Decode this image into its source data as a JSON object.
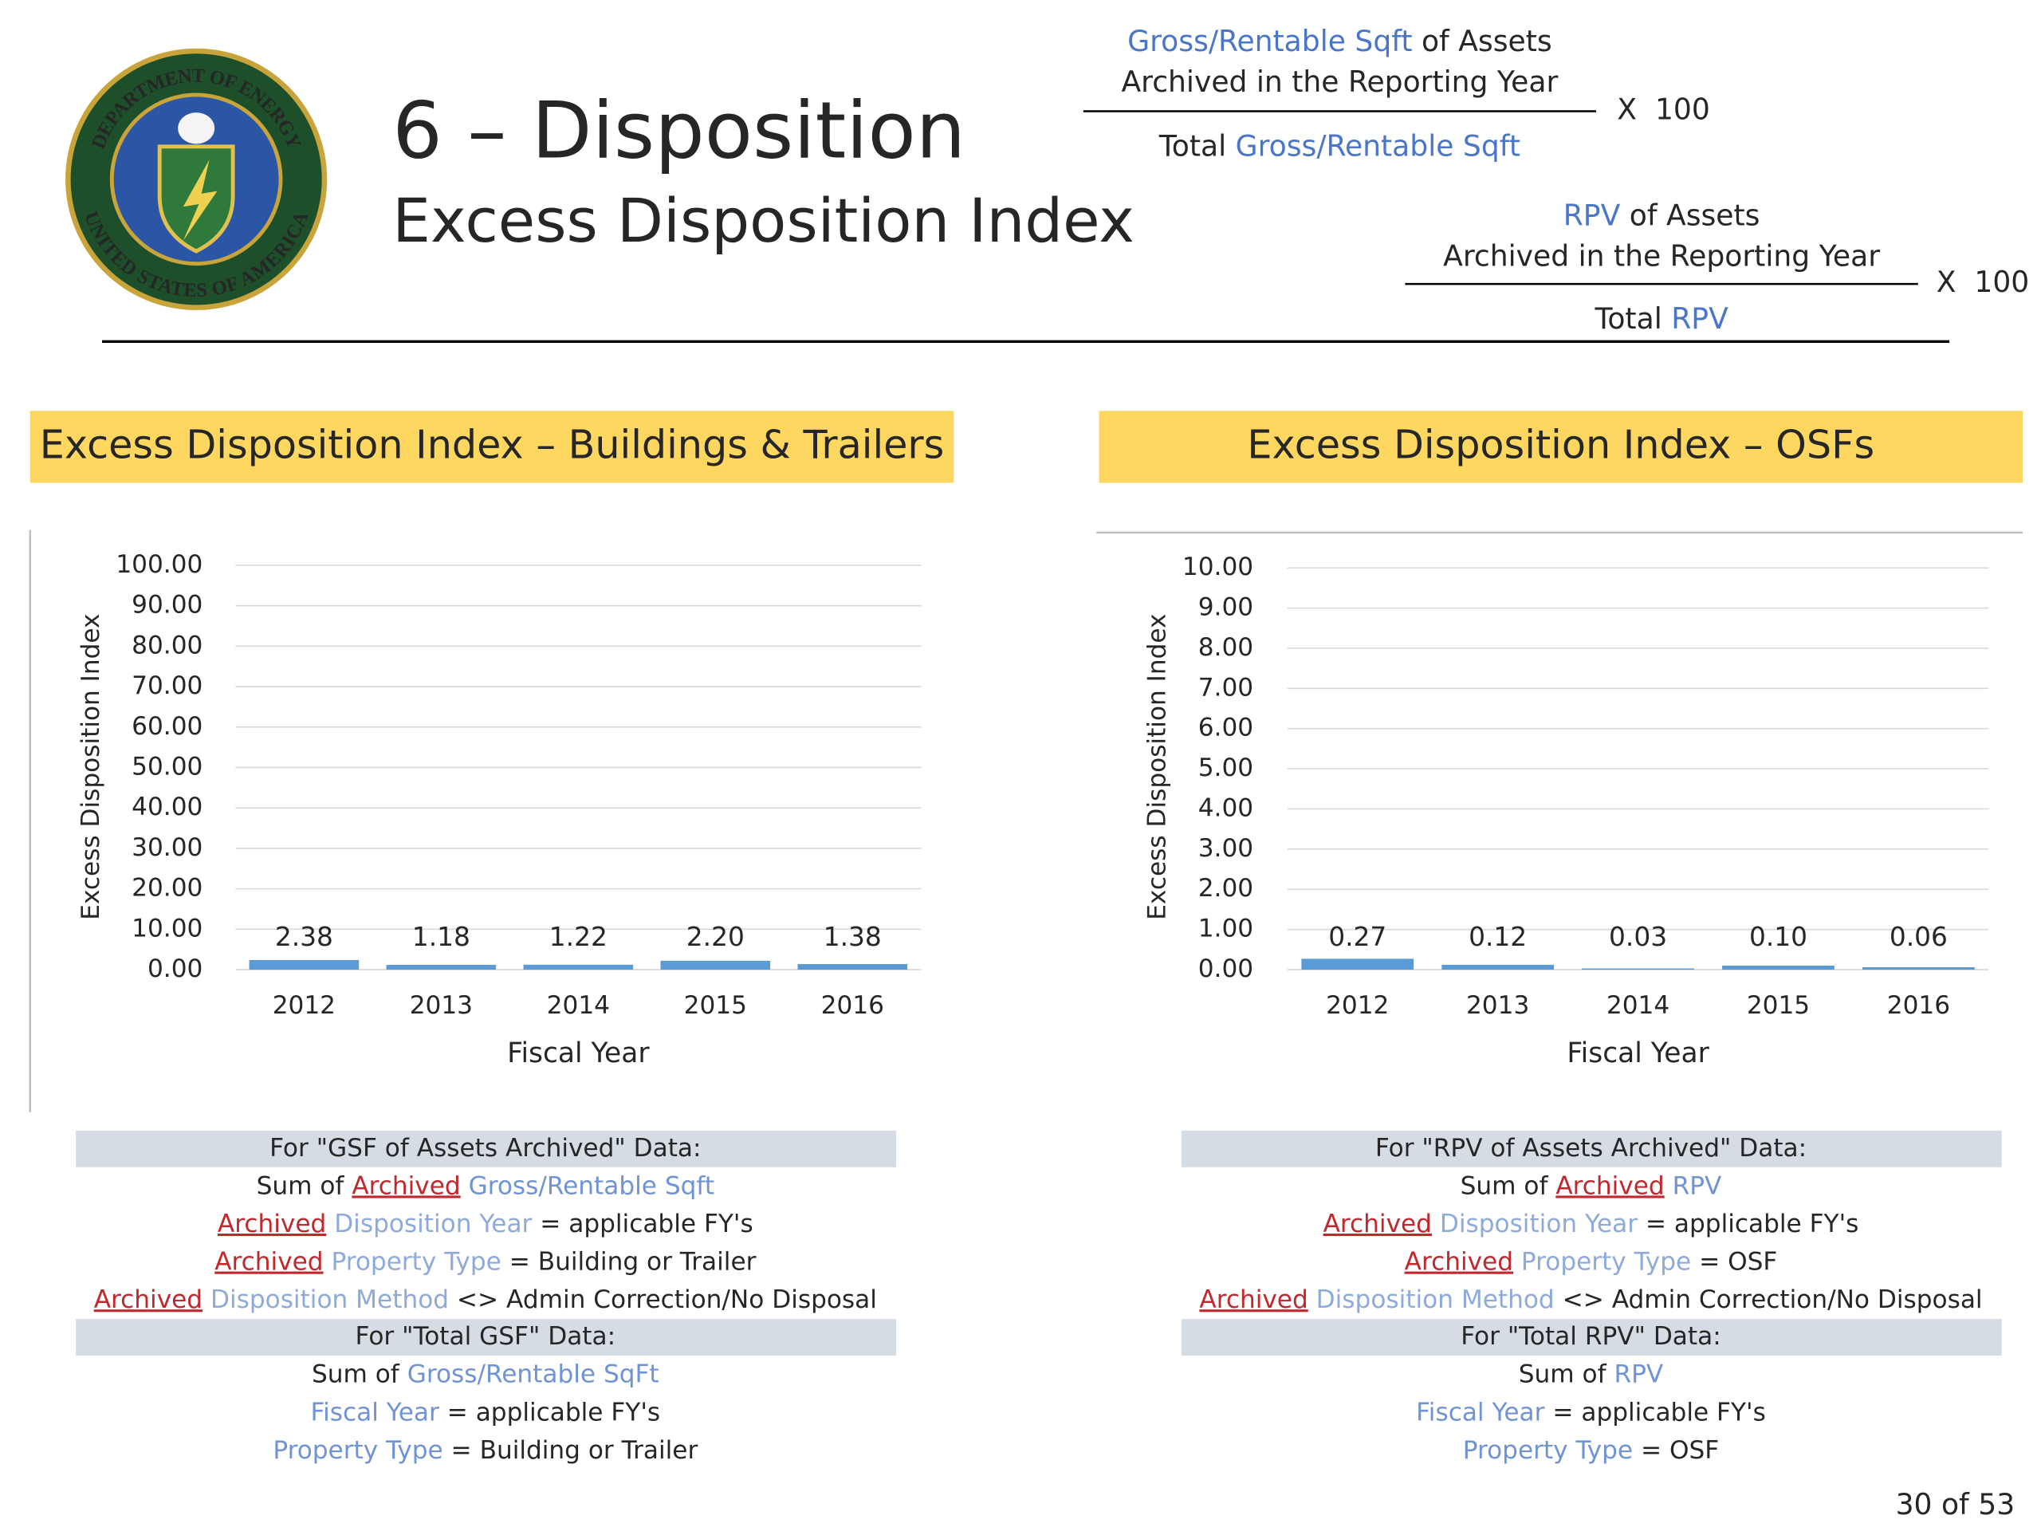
{
  "logo": {
    "top": "DEPARTMENT OF ENERGY",
    "bottom": "UNITED STATES OF AMERICA"
  },
  "header": {
    "title": "6 – Disposition",
    "subtitle": "Excess Disposition Index"
  },
  "formulas": [
    {
      "numerator": [
        [
          {
            "text": "Gross/Rentable Sqft",
            "color": "#4a76c8"
          },
          {
            "text": " of Assets"
          }
        ],
        [
          {
            "text": "Archived in the Reporting Year"
          }
        ]
      ],
      "denominator": [
        {
          "text": "Total "
        },
        {
          "text": "Gross/Rentable Sqft",
          "color": "#4a76c8"
        }
      ],
      "multiplier": "X  100"
    },
    {
      "numerator": [
        [
          {
            "text": "RPV",
            "color": "#4a76c8"
          },
          {
            "text": " of Assets"
          }
        ],
        [
          {
            "text": "Archived in the Reporting Year"
          }
        ]
      ],
      "denominator": [
        {
          "text": "Total "
        },
        {
          "text": "RPV",
          "color": "#4a76c8"
        }
      ],
      "multiplier": "X  100"
    }
  ],
  "chart_data": [
    {
      "type": "bar",
      "title": "Excess Disposition Index – Buildings & Trailers",
      "x_label": "Fiscal Year",
      "y_label": "Excess Disposition Index",
      "categories": [
        "2012",
        "2013",
        "2014",
        "2015",
        "2016"
      ],
      "values": [
        2.38,
        1.18,
        1.22,
        2.2,
        1.38
      ],
      "value_labels": [
        "2.38",
        "1.18",
        "1.22",
        "2.20",
        "1.38"
      ],
      "color": "#5b9bd5",
      "grid": true,
      "ylim": [
        0,
        100
      ],
      "yticks": [
        {
          "value": 0,
          "label": "0.00"
        },
        {
          "value": 10,
          "label": "10.00"
        },
        {
          "value": 20,
          "label": "20.00"
        },
        {
          "value": 30,
          "label": "30.00"
        },
        {
          "value": 40,
          "label": "40.00"
        },
        {
          "value": 50,
          "label": "50.00"
        },
        {
          "value": 60,
          "label": "60.00"
        },
        {
          "value": 70,
          "label": "70.00"
        },
        {
          "value": 80,
          "label": "80.00"
        },
        {
          "value": 90,
          "label": "90.00"
        },
        {
          "value": 100,
          "label": "100.00"
        }
      ]
    },
    {
      "type": "bar",
      "title": "Excess Disposition Index – OSFs",
      "x_label": "Fiscal Year",
      "y_label": "Excess Disposition Index",
      "categories": [
        "2012",
        "2013",
        "2014",
        "2015",
        "2016"
      ],
      "values": [
        0.27,
        0.12,
        0.03,
        0.1,
        0.06
      ],
      "value_labels": [
        "0.27",
        "0.12",
        "0.03",
        "0.10",
        "0.06"
      ],
      "color": "#5b9bd5",
      "grid": true,
      "ylim": [
        0,
        10
      ],
      "yticks": [
        {
          "value": 0,
          "label": "0.00"
        },
        {
          "value": 1,
          "label": "1.00"
        },
        {
          "value": 2,
          "label": "2.00"
        },
        {
          "value": 3,
          "label": "3.00"
        },
        {
          "value": 4,
          "label": "4.00"
        },
        {
          "value": 5,
          "label": "5.00"
        },
        {
          "value": 6,
          "label": "6.00"
        },
        {
          "value": 7,
          "label": "7.00"
        },
        {
          "value": 8,
          "label": "8.00"
        },
        {
          "value": 9,
          "label": "9.00"
        },
        {
          "value": 10,
          "label": "10.00"
        }
      ]
    }
  ],
  "notes": [
    {
      "sections": [
        {
          "heading": "For \"GSF of Assets Archived\" Data:",
          "lines": [
            [
              {
                "text": "Sum of "
              },
              {
                "text": "Archived",
                "color": "#c0282d",
                "underline": true
              },
              {
                "text": " "
              },
              {
                "text": "Gross/Rentable Sqft",
                "color": "#6f93d4"
              }
            ],
            [
              {
                "text": "Archived",
                "color": "#c0282d",
                "underline": true
              },
              {
                "text": " "
              },
              {
                "text": "Disposition Year",
                "color": "#8eaadb"
              },
              {
                "text": " = applicable FY's"
              }
            ],
            [
              {
                "text": "Archived",
                "color": "#c0282d",
                "underline": true
              },
              {
                "text": " "
              },
              {
                "text": "Property Type",
                "color": "#8eaadb"
              },
              {
                "text": " = Building or Trailer"
              }
            ],
            [
              {
                "text": "Archived",
                "color": "#c0282d",
                "underline": true
              },
              {
                "text": " "
              },
              {
                "text": "Disposition Method",
                "color": "#8eaadb"
              },
              {
                "text": " <> Admin Correction/No Disposal"
              }
            ]
          ]
        },
        {
          "heading": "For \"Total GSF\" Data:",
          "lines": [
            [
              {
                "text": "Sum of "
              },
              {
                "text": "Gross/Rentable SqFt",
                "color": "#6f93d4"
              }
            ],
            [
              {
                "text": "Fiscal Year",
                "color": "#6f93d4"
              },
              {
                "text": " = applicable FY's"
              }
            ],
            [
              {
                "text": "Property Type",
                "color": "#6f93d4"
              },
              {
                "text": " = Building or Trailer"
              }
            ]
          ]
        }
      ]
    },
    {
      "sections": [
        {
          "heading": "For \"RPV of Assets Archived\" Data:",
          "lines": [
            [
              {
                "text": "Sum of "
              },
              {
                "text": "Archived",
                "color": "#c0282d",
                "underline": true
              },
              {
                "text": " "
              },
              {
                "text": "RPV",
                "color": "#6f93d4"
              }
            ],
            [
              {
                "text": "Archived",
                "color": "#c0282d",
                "underline": true
              },
              {
                "text": " "
              },
              {
                "text": "Disposition Year",
                "color": "#8eaadb"
              },
              {
                "text": " = applicable FY's"
              }
            ],
            [
              {
                "text": "Archived",
                "color": "#c0282d",
                "underline": true
              },
              {
                "text": " "
              },
              {
                "text": "Property Type",
                "color": "#8eaadb"
              },
              {
                "text": " = OSF"
              }
            ],
            [
              {
                "text": "Archived",
                "color": "#c0282d",
                "underline": true
              },
              {
                "text": " "
              },
              {
                "text": "Disposition Method",
                "color": "#8eaadb"
              },
              {
                "text": " <> Admin Correction/No Disposal"
              }
            ]
          ]
        },
        {
          "heading": "For \"Total RPV\" Data:",
          "lines": [
            [
              {
                "text": "Sum of "
              },
              {
                "text": "RPV",
                "color": "#6f93d4"
              }
            ],
            [
              {
                "text": "Fiscal Year",
                "color": "#6f93d4"
              },
              {
                "text": " = applicable FY's"
              }
            ],
            [
              {
                "text": "Property Type",
                "color": "#6f93d4"
              },
              {
                "text": " = OSF"
              }
            ]
          ]
        }
      ]
    }
  ],
  "footer": {
    "page": "30 of 53"
  }
}
